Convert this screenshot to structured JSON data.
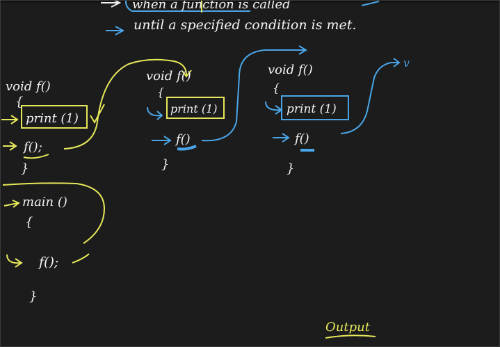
{
  "header": {
    "line1": "when a function is called",
    "line2": "until a specified condition is met."
  },
  "frames": [
    {
      "signature": "void f()",
      "open_brace": "{",
      "print_stmt": "print (1)",
      "call_stmt": "f();",
      "close_brace": "}"
    },
    {
      "signature": "void f()",
      "open_brace": "{",
      "print_stmt": "print (1)",
      "call_stmt": "f()",
      "close_brace": "}"
    },
    {
      "signature": "void f()",
      "open_brace": "{",
      "print_stmt": "print (1)",
      "call_stmt": "f()",
      "close_brace": "}"
    }
  ],
  "main": {
    "signature": "main ()",
    "open_brace": "{",
    "call_stmt": "f();",
    "close_brace": "}"
  },
  "continuation_mark": "v",
  "output_label": "Output",
  "colors": {
    "background": "#1c1c1c",
    "chalk_white": "#f2f2f2",
    "highlight_yellow": "#e6e85a",
    "arrow_blue": "#4aa6e8"
  }
}
